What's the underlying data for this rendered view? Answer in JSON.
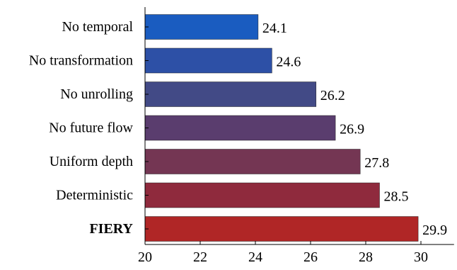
{
  "chart_data": {
    "type": "bar",
    "orientation": "horizontal",
    "categories": [
      "No temporal",
      "No transformation",
      "No unrolling",
      "No future flow",
      "Uniform depth",
      "Deterministic",
      "FIERY"
    ],
    "values": [
      24.1,
      24.6,
      26.2,
      26.9,
      27.8,
      28.5,
      29.9
    ],
    "value_labels": [
      "24.1",
      "24.6",
      "26.2",
      "26.9",
      "27.8",
      "28.5",
      "29.9"
    ],
    "bar_colors": [
      "#1a5cc0",
      "#2d50a6",
      "#424a86",
      "#5a3d6e",
      "#743653",
      "#8f2a3d",
      "#b02626"
    ],
    "bold_categories": [
      "FIERY"
    ],
    "xlim": [
      20,
      31.2
    ],
    "x_ticks": [
      20,
      22,
      24,
      26,
      28,
      30
    ],
    "x_tick_labels": [
      "20",
      "22",
      "24",
      "26",
      "28",
      "30"
    ],
    "title": "",
    "xlabel": "",
    "ylabel": "",
    "grid": false,
    "legend": "none"
  }
}
